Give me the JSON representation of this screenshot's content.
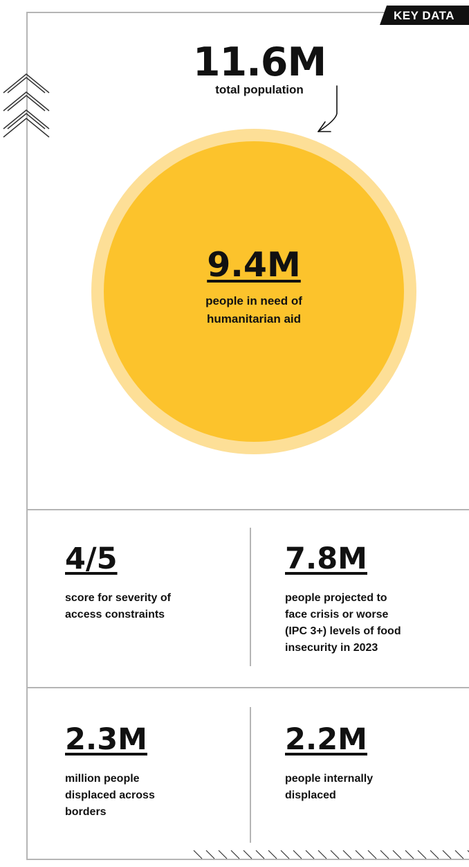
{
  "tag": {
    "label": "KEY DATA"
  },
  "population": {
    "value": "11.6M",
    "label": "total population"
  },
  "in_need": {
    "value": "9.4M",
    "label_line1": "people in need of",
    "label_line2": "humanitarian aid"
  },
  "stats": [
    {
      "value": "4/5",
      "lines": [
        "score for severity of",
        "access constraints"
      ]
    },
    {
      "value": "7.8M",
      "lines": [
        "people projected to",
        "face crisis or worse",
        "(IPC 3+) levels of food",
        "insecurity in 2023"
      ]
    },
    {
      "value": "2.3M",
      "lines": [
        "million people",
        "displaced across",
        "borders"
      ]
    },
    {
      "value": "2.2M",
      "lines": [
        "people internally",
        "displaced"
      ]
    }
  ],
  "colors": {
    "circle_outer": "#fddf97",
    "circle_inner": "#fcc32c",
    "frame": "#b5b5b5",
    "tag_background": "#111111"
  },
  "icons": [
    "chevron-stack-icon",
    "hatch-pattern",
    "curved-arrow-icon"
  ]
}
